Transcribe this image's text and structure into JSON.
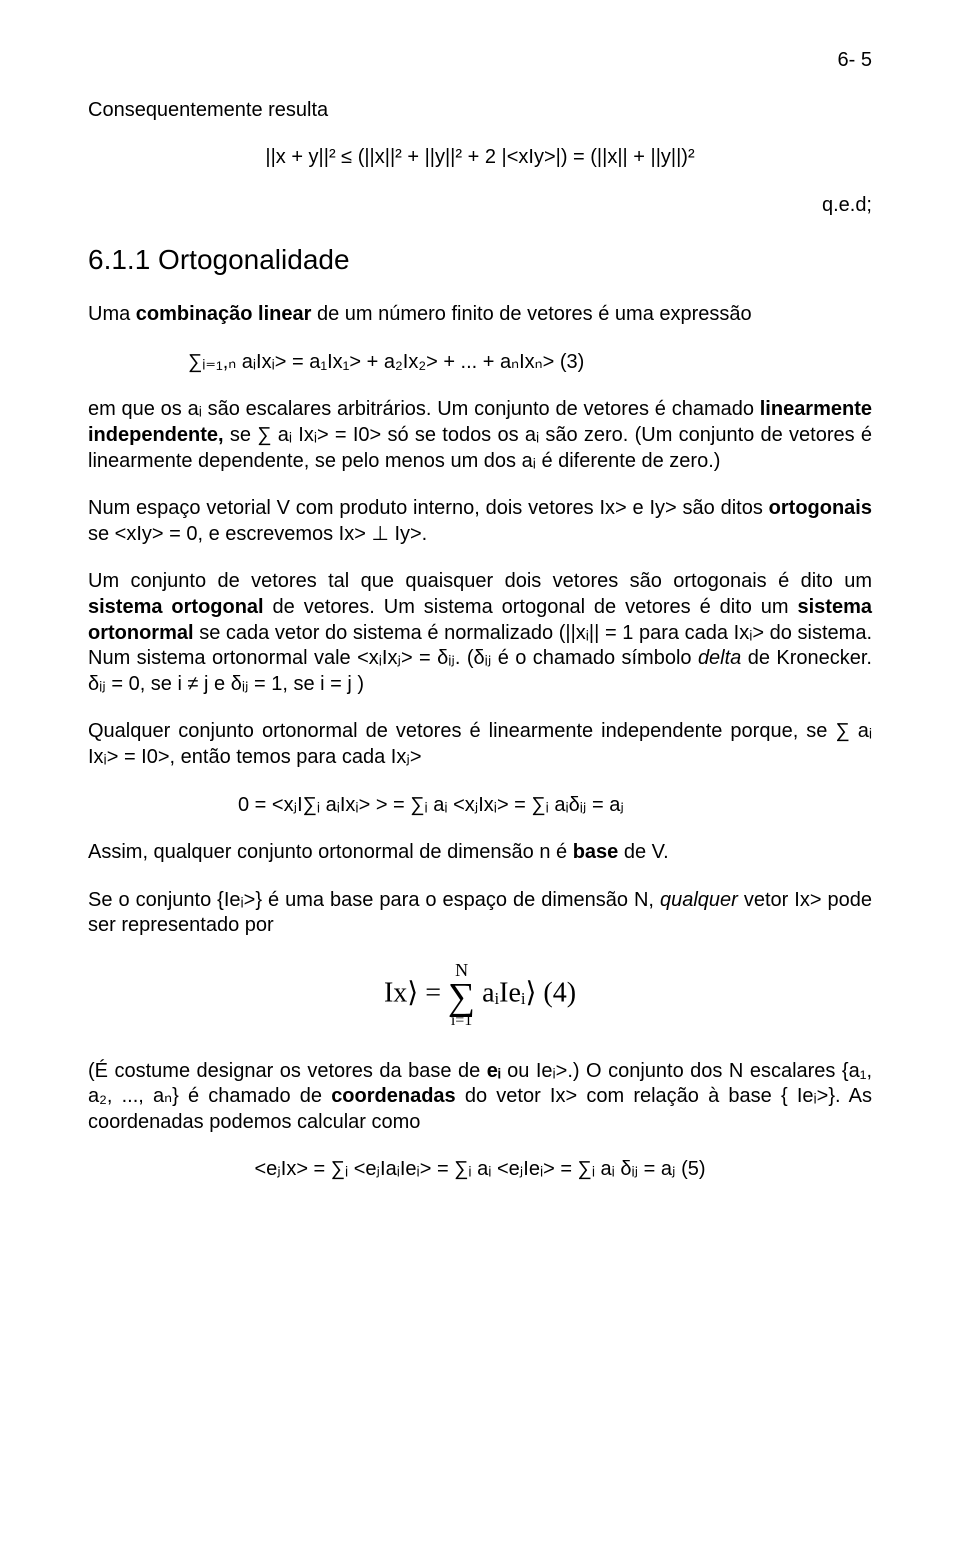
{
  "page_number": "6- 5",
  "p1": "Consequentemente resulta",
  "eq_a": "||x + y||² ≤ (||x||² + ||y||² + 2 |<xIy>|) = (||x|| + ||y||)²",
  "qed": "q.e.d;",
  "heading": "6.1.1 Ortogonalidade",
  "p2_a": "Uma ",
  "p2_b": "combinação linear",
  "p2_c": " de um número finito de vetores é uma expressão",
  "eq_b": "∑ᵢ₌₁,ₙ aᵢIxᵢ> = a₁Ix₁> + a₂Ix₂> + ... + aₙIxₙ>    (3)",
  "p3_a": "em que os aᵢ são escalares arbitrários. Um conjunto de vetores é chamado ",
  "p3_b": "linearmente independente,",
  "p3_c": " se ∑ aᵢ Ixᵢ> = I0> só se todos os aᵢ são zero. (Um conjunto de vetores é linearmente dependente, se pelo menos um dos aᵢ é diferente de zero.)",
  "p4_a": "Num espaço vetorial V com produto interno, dois vetores Ix> e Iy> são ditos ",
  "p4_b": "ortogonais",
  "p4_c": " se <xIy> = 0, e escrevemos Ix> ⊥ Iy>.",
  "p5_a": "Um conjunto de vetores tal que quaisquer dois vetores são ortogonais é dito um ",
  "p5_b": "sistema ortogonal",
  "p5_c": " de vetores. Um sistema ortogonal de vetores é dito um ",
  "p5_d": "sistema ortonormal",
  "p5_e": " se cada vetor do sistema é normalizado (||xᵢ|| = 1 para cada Ixᵢ> do sistema. Num sistema ortonormal vale <xᵢIxⱼ> = δᵢⱼ. (δᵢⱼ é o chamado símbolo ",
  "p5_f": "delta",
  "p5_g": " de Kronecker. δᵢⱼ = 0, se i ≠ j e δᵢⱼ = 1, se i = j )",
  "p6": "Qualquer conjunto ortonormal de vetores é linearmente independente porque, se ∑ aᵢ Ixᵢ> = I0>, então temos para cada Ixⱼ>",
  "eq_c": "0 = <xⱼI∑ᵢ aᵢIxᵢ> > = ∑ᵢ aᵢ <xⱼIxᵢ> = ∑ᵢ aᵢδᵢⱼ = aⱼ",
  "p7_a": "Assim, qualquer conjunto ortonormal de dimensão n é ",
  "p7_b": "base",
  "p7_c": " de V.",
  "p8_a": "Se o conjunto {Ieᵢ>} é uma base para o espaço de dimensão N, ",
  "p8_b": "qualquer",
  "p8_c": " vetor Ix> pode ser representado por",
  "eq4_left": "Ix⟩ = ",
  "eq4_top": "N",
  "eq4_right": " aᵢIeᵢ⟩   (4)",
  "eq4_bot": "i=1",
  "p9_a": "(É costume designar os vetores da base de ",
  "p9_b": "eᵢ",
  "p9_c": " ou Ieᵢ>.) O conjunto dos N escalares {a₁, a₂, ..., aₙ} é chamado de ",
  "p9_d": "coordenadas",
  "p9_e": " do vetor Ix> com relação à base { Ieᵢ>}. As coordenadas podemos calcular como",
  "eq_e": "<eⱼIx> = ∑ᵢ <eⱼIaᵢIeᵢ> = ∑ᵢ aᵢ <eⱼIeᵢ> = ∑ᵢ aᵢ δᵢⱼ = aⱼ   (5)"
}
